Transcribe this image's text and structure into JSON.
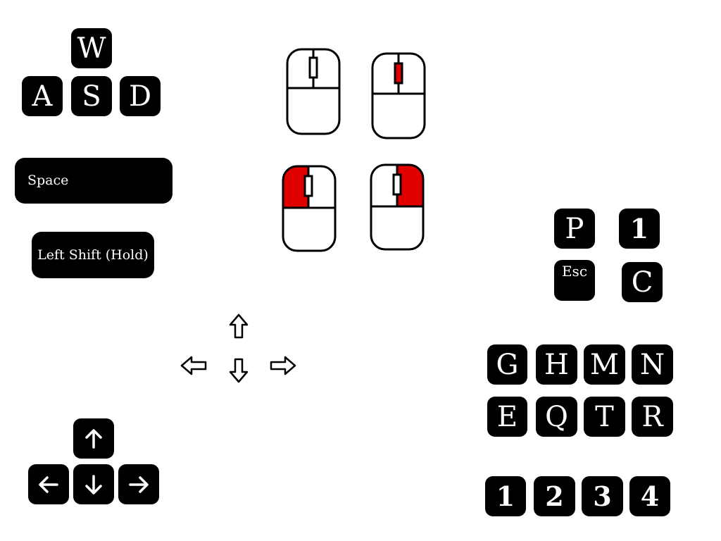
{
  "movement_keys": {
    "w": "W",
    "a": "A",
    "s": "S",
    "d": "D"
  },
  "space_label": "Space",
  "shift_label": "Left Shift (Hold)",
  "mouse_colors": {
    "outline": "#000000",
    "highlight": "#e00000",
    "body": "#ffffff"
  },
  "mouse_buttons": [
    {
      "label": "mouse-idle",
      "highlight": "none"
    },
    {
      "label": "mouse-scroll",
      "highlight": "wheel"
    },
    {
      "label": "mouse-left-click",
      "highlight": "left"
    },
    {
      "label": "mouse-right-click",
      "highlight": "right"
    }
  ],
  "outline_arrows": {
    "up": "⇧",
    "left": "⇦",
    "down": "⇩",
    "right": "⇨"
  },
  "arrow_keys": {
    "up": "↑",
    "left": "←",
    "down": "↓",
    "right": "→"
  },
  "action_keys": {
    "p": "P",
    "one": "1",
    "esc": "Esc",
    "c": "C"
  },
  "letter_grid": {
    "row1": [
      "G",
      "H",
      "M",
      "N"
    ],
    "row2": [
      "E",
      "Q",
      "T",
      "R"
    ]
  },
  "number_row": [
    "1",
    "2",
    "3",
    "4"
  ]
}
